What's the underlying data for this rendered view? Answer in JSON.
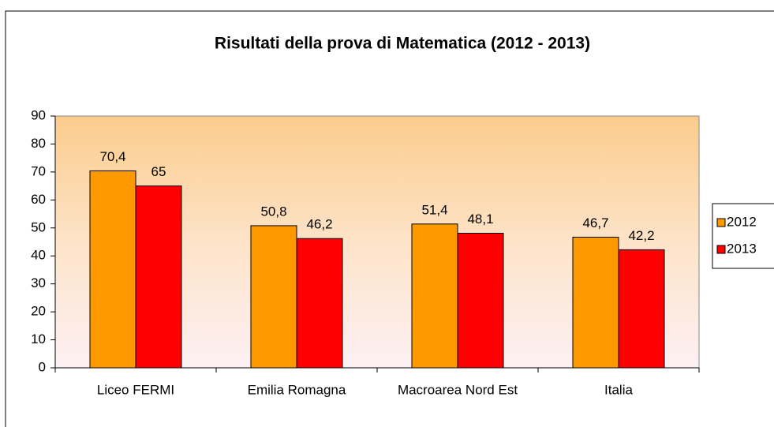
{
  "chart_data": {
    "type": "bar",
    "title": "Risultati della prova di Matematica (2012 - 2013)",
    "categories": [
      "Liceo FERMI",
      "Emilia Romagna",
      "Macroarea Nord Est",
      "Italia"
    ],
    "series": [
      {
        "name": "2012",
        "color": "#ff9900",
        "values": [
          70.4,
          50.8,
          51.4,
          46.7
        ],
        "value_labels": [
          "70,4",
          "50,8",
          "51,4",
          "46,7"
        ]
      },
      {
        "name": "2013",
        "color": "#ff0000",
        "values": [
          65,
          46.2,
          48.1,
          42.2
        ],
        "value_labels": [
          "65",
          "46,2",
          "48,1",
          "42,2"
        ]
      }
    ],
    "ylim": [
      0,
      90
    ],
    "yticks": [
      0,
      10,
      20,
      30,
      40,
      50,
      60,
      70,
      80,
      90
    ],
    "legend": "right"
  }
}
